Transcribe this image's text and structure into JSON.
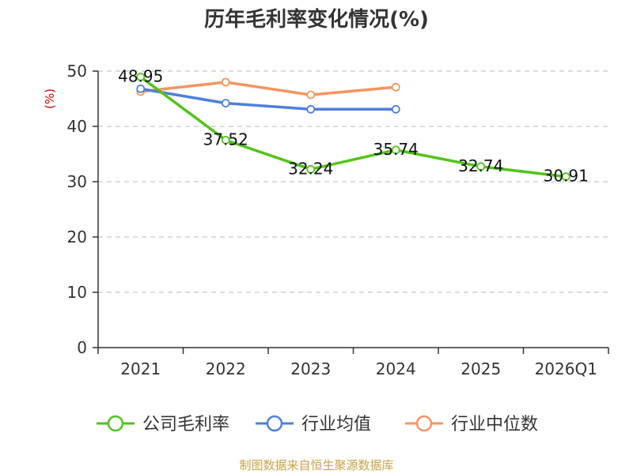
{
  "chart_data": {
    "type": "line",
    "title": "历年毛利率变化情况(%)",
    "ylabel": "(%)",
    "categories": [
      "2021",
      "2022",
      "2023",
      "2024",
      "2025",
      "2026Q1"
    ],
    "ylim": [
      0,
      50
    ],
    "yticks": [
      0,
      10,
      20,
      30,
      40,
      50
    ],
    "grid": true,
    "legend_position": "bottom",
    "series": [
      {
        "name": "公司毛利率",
        "color": "#52c41a",
        "values": [
          48.95,
          37.52,
          32.24,
          35.74,
          32.74,
          30.91
        ],
        "labels": [
          "48.95",
          "37.52",
          "32.24",
          "35.74",
          "32.74",
          "30.91"
        ]
      },
      {
        "name": "行业均值",
        "color": "#4e7fdb",
        "values": [
          46.8,
          44.2,
          43.1,
          43.1,
          null,
          null
        ]
      },
      {
        "name": "行业中位数",
        "color": "#f59460",
        "values": [
          46.3,
          48.0,
          45.7,
          47.1,
          null,
          null
        ]
      }
    ]
  },
  "source_note": "制图数据来自恒生聚源数据库",
  "colors": {
    "ylabel": "#cc0000",
    "source_note": "#c8a24a",
    "grid": "#c8c8c8",
    "axis": "#333333"
  }
}
